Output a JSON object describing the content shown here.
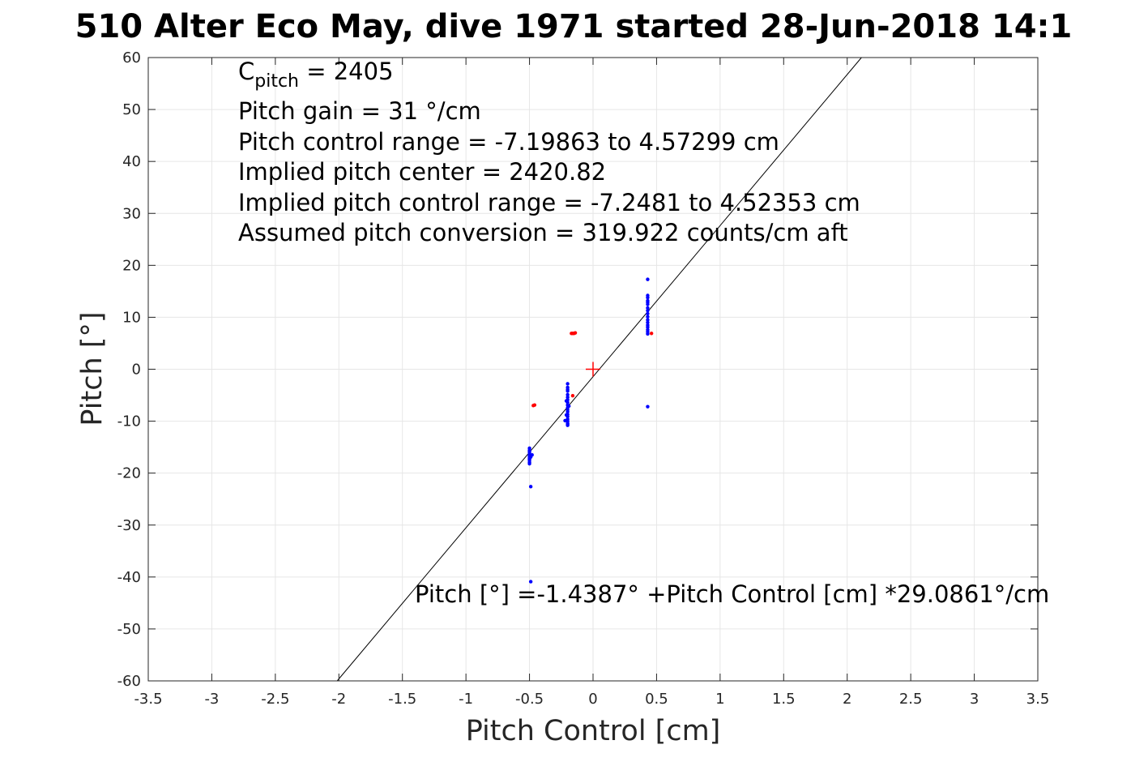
{
  "chart_data": {
    "type": "scatter",
    "title": "510 Alter Eco May, dive 1971 started 28-Jun-2018 14:1",
    "xlabel": "Pitch Control [cm]",
    "ylabel": "Pitch [°]",
    "xlim": [
      -3.5,
      3.5
    ],
    "ylim": [
      -60,
      60
    ],
    "grid": true,
    "x_ticks": [
      -3.5,
      -3,
      -2.5,
      -2,
      -1.5,
      -1,
      -0.5,
      0,
      0.5,
      1,
      1.5,
      2,
      2.5,
      3,
      3.5
    ],
    "y_ticks": [
      -60,
      -50,
      -40,
      -30,
      -20,
      -10,
      0,
      10,
      20,
      30,
      40,
      50,
      60
    ],
    "x_tick_labels": [
      "-3.5",
      "-3",
      "-2.5",
      "-2",
      "-1.5",
      "-1",
      "-0.5",
      "0",
      "0.5",
      "1",
      "1.5",
      "2",
      "2.5",
      "3",
      "3.5"
    ],
    "y_tick_labels": [
      "-60",
      "-50",
      "-40",
      "-30",
      "-20",
      "-10",
      "0",
      "10",
      "20",
      "30",
      "40",
      "50",
      "60"
    ],
    "colors": {
      "fit_line": "#000000",
      "points_included": "#0000ff",
      "points_excluded": "#ff0000",
      "center_marker": "#ff0000",
      "grid": "#e6e6e6",
      "axes": "#262626"
    },
    "fit_line": {
      "intercept": -1.4387,
      "slope": 29.0861
    },
    "center_marker": {
      "x": 0,
      "y": 0
    },
    "series": [
      {
        "color": "#0000ff",
        "x": [
          0.43,
          0.43,
          0.43,
          0.43,
          0.43,
          0.43,
          0.43,
          0.43,
          0.43,
          0.43,
          0.43,
          0.43,
          0.43,
          0.43,
          0.43,
          0.43,
          0.43,
          0.43,
          -0.2,
          -0.2,
          -0.2,
          -0.2,
          -0.2,
          -0.2,
          -0.2,
          -0.2,
          -0.2,
          -0.2,
          -0.2,
          -0.2,
          -0.2,
          -0.2,
          -0.2,
          -0.2,
          -0.2,
          -0.2,
          -0.2,
          -0.21,
          -0.22,
          -0.19,
          -0.21,
          -0.5,
          -0.5,
          -0.5,
          -0.5,
          -0.5,
          -0.5,
          -0.5,
          -0.5,
          -0.5,
          -0.5,
          -0.5,
          -0.5,
          -0.49,
          -0.48,
          -0.49,
          -0.49
        ],
        "y": [
          17.3,
          14.2,
          13.8,
          13.2,
          12.5,
          11.8,
          11.3,
          10.7,
          10.1,
          9.5,
          9.0,
          8.5,
          8.1,
          7.6,
          7.2,
          6.8,
          -7.2,
          12.9,
          -2.8,
          -3.5,
          -4.2,
          -4.9,
          -5.4,
          -5.9,
          -6.4,
          -6.9,
          -7.4,
          -7.8,
          -8.2,
          -8.7,
          -9.1,
          -9.6,
          -10.0,
          -10.4,
          -10.8,
          -10.6,
          -3.9,
          -6.1,
          -9.9,
          -7.1,
          -8.8,
          -15.2,
          -15.6,
          -16.0,
          -16.4,
          -16.8,
          -17.1,
          -17.5,
          -17.9,
          -18.2,
          -15.8,
          -16.6,
          -17.3,
          -16.9,
          -16.5,
          -22.6,
          -40.9
        ]
      },
      {
        "color": "#ff0000",
        "x": [
          -0.17,
          -0.16,
          -0.15,
          -0.14,
          -0.46,
          -0.47,
          -0.16,
          0.46
        ],
        "y": [
          6.9,
          6.9,
          6.9,
          7.0,
          -6.9,
          -7.0,
          -5.1,
          6.9
        ]
      }
    ],
    "annotations": {
      "c_pitch_label": "C",
      "c_pitch_sub": "pitch",
      "c_pitch_value": " = 2405",
      "line2": "Pitch gain = 31 °/cm",
      "line3": "Pitch control range = -7.19863 to 4.57299 cm",
      "line4": "Implied pitch center = 2420.82",
      "line5": "Implied pitch control range = -7.2481 to 4.52353 cm",
      "line6": "Assumed pitch conversion = 319.922 counts/cm aft",
      "fit_equation": "Pitch [°] =-1.4387° +Pitch Control [cm] *29.0861°/cm"
    }
  }
}
